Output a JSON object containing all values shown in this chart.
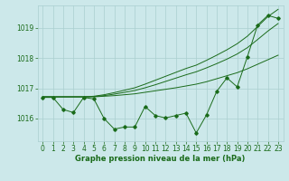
{
  "background_color": "#cce8ea",
  "grid_color": "#aacfcf",
  "line_color": "#1a6b1a",
  "xlabel": "Graphe pression niveau de la mer (hPa)",
  "x": [
    0,
    1,
    2,
    3,
    4,
    5,
    6,
    7,
    8,
    9,
    10,
    11,
    12,
    13,
    14,
    15,
    16,
    17,
    18,
    19,
    20,
    21,
    22,
    23
  ],
  "y_main": [
    1016.7,
    1016.7,
    1016.3,
    1016.2,
    1016.7,
    1016.65,
    1016.0,
    1015.65,
    1015.72,
    1015.72,
    1016.4,
    1016.1,
    1016.02,
    1016.1,
    1016.18,
    1015.52,
    1016.12,
    1016.9,
    1017.35,
    1017.05,
    1018.05,
    1019.1,
    1019.42,
    1019.32
  ],
  "y_line1": [
    1016.72,
    1016.72,
    1016.72,
    1016.72,
    1016.72,
    1016.72,
    1016.74,
    1016.76,
    1016.79,
    1016.82,
    1016.87,
    1016.92,
    1016.97,
    1017.02,
    1017.08,
    1017.14,
    1017.22,
    1017.32,
    1017.42,
    1017.52,
    1017.65,
    1017.8,
    1017.95,
    1018.1
  ],
  "y_line2": [
    1016.72,
    1016.72,
    1016.72,
    1016.72,
    1016.72,
    1016.73,
    1016.76,
    1016.81,
    1016.87,
    1016.93,
    1017.02,
    1017.12,
    1017.23,
    1017.34,
    1017.45,
    1017.55,
    1017.68,
    1017.82,
    1017.97,
    1018.14,
    1018.35,
    1018.62,
    1018.9,
    1019.15
  ],
  "y_line3": [
    1016.72,
    1016.72,
    1016.72,
    1016.72,
    1016.72,
    1016.74,
    1016.79,
    1016.86,
    1016.94,
    1017.02,
    1017.14,
    1017.27,
    1017.4,
    1017.53,
    1017.66,
    1017.77,
    1017.93,
    1018.1,
    1018.28,
    1018.48,
    1018.73,
    1019.05,
    1019.38,
    1019.62
  ],
  "ylim": [
    1015.25,
    1019.75
  ],
  "yticks": [
    1016,
    1017,
    1018,
    1019
  ],
  "xticks": [
    0,
    1,
    2,
    3,
    4,
    5,
    6,
    7,
    8,
    9,
    10,
    11,
    12,
    13,
    14,
    15,
    16,
    17,
    18,
    19,
    20,
    21,
    22,
    23
  ],
  "tick_fontsize": 5.5,
  "xlabel_fontsize": 6.0
}
